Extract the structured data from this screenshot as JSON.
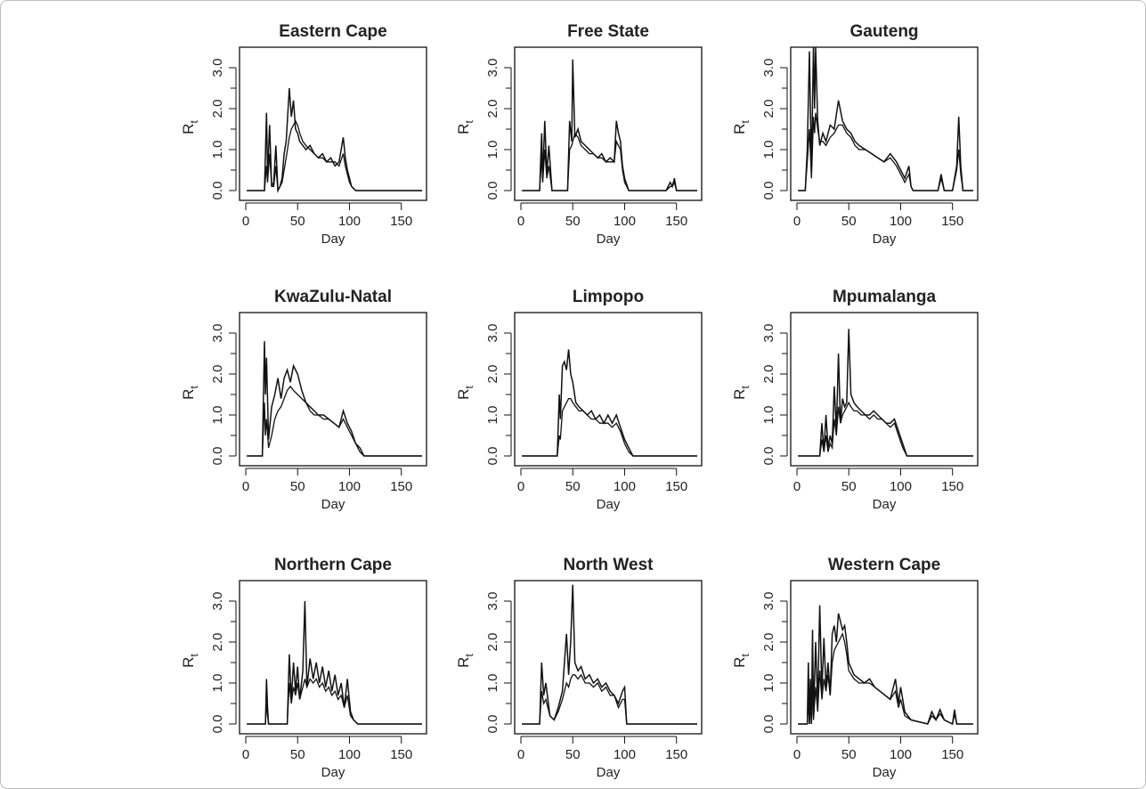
{
  "chart_data": [
    {
      "type": "line",
      "title": "Eastern Cape",
      "xlabel": "Day",
      "ylabel": "R",
      "ylabel_subscript": "t",
      "xlim": [
        0,
        170
      ],
      "ylim": [
        0,
        3.0
      ],
      "xticks": [
        0,
        50,
        100,
        150
      ],
      "yticks": [
        0.0,
        1.0,
        2.0,
        3.0
      ],
      "x": [
        1,
        18,
        20,
        21,
        23,
        25,
        27,
        29,
        31,
        33,
        35,
        37,
        39,
        42,
        44,
        46,
        48,
        50,
        52,
        55,
        58,
        62,
        66,
        70,
        74,
        78,
        82,
        86,
        90,
        94,
        96,
        98,
        100,
        102,
        104,
        106,
        110,
        170
      ],
      "series": [
        {
          "values": [
            0,
            0,
            1.9,
            0.4,
            1.6,
            0.1,
            0.2,
            1.1,
            0,
            0.1,
            0.3,
            0.9,
            1.2,
            2.5,
            1.8,
            2.2,
            1.5,
            1.4,
            1.2,
            1.1,
            1.0,
            1.1,
            0.9,
            0.8,
            0.9,
            0.7,
            0.8,
            0.6,
            0.7,
            1.3,
            0.8,
            0.5,
            0.3,
            0.1,
            0.05,
            0,
            0,
            0
          ]
        },
        {
          "values": [
            0,
            0,
            0.6,
            0.2,
            0.9,
            0.1,
            0.1,
            0.6,
            0,
            0.1,
            0.2,
            0.5,
            0.8,
            1.3,
            1.5,
            1.6,
            1.7,
            1.6,
            1.4,
            1.2,
            1.1,
            1.0,
            0.9,
            0.8,
            0.8,
            0.7,
            0.7,
            0.7,
            0.6,
            0.9,
            0.6,
            0.4,
            0.2,
            0.1,
            0.05,
            0,
            0,
            0
          ]
        }
      ]
    },
    {
      "type": "line",
      "title": "Free State",
      "xlabel": "Day",
      "ylabel": "R",
      "ylabel_subscript": "t",
      "xlim": [
        0,
        170
      ],
      "ylim": [
        0,
        3.0
      ],
      "xticks": [
        0,
        50,
        100,
        150
      ],
      "yticks": [
        0.0,
        1.0,
        2.0,
        3.0
      ],
      "x": [
        1,
        18,
        20,
        21,
        23,
        25,
        27,
        30,
        45,
        47,
        49,
        50,
        52,
        55,
        58,
        62,
        66,
        70,
        74,
        78,
        82,
        86,
        90,
        92,
        94,
        96,
        98,
        100,
        104,
        140,
        144,
        146,
        148,
        150,
        170
      ],
      "series": [
        {
          "values": [
            0,
            0,
            1.4,
            0.3,
            1.7,
            0.4,
            1.1,
            0,
            0,
            1.7,
            1.2,
            3.2,
            1.3,
            1.5,
            1.2,
            1.1,
            1.0,
            0.9,
            0.8,
            0.9,
            0.7,
            0.8,
            0.7,
            1.7,
            1.4,
            1.2,
            0.6,
            0.3,
            0,
            0,
            0.2,
            0.1,
            0.3,
            0,
            0
          ]
        },
        {
          "values": [
            0,
            0,
            0.8,
            0.2,
            1.0,
            0.3,
            0.6,
            0,
            0,
            1.0,
            1.1,
            1.2,
            1.4,
            1.3,
            1.1,
            1.0,
            0.9,
            0.9,
            0.8,
            0.8,
            0.7,
            0.7,
            0.7,
            1.2,
            1.1,
            1.0,
            0.5,
            0.2,
            0,
            0,
            0.1,
            0.1,
            0.2,
            0,
            0
          ]
        }
      ]
    },
    {
      "type": "line",
      "title": "Gauteng",
      "xlabel": "Day",
      "ylabel": "R",
      "ylabel_subscript": "t",
      "xlim": [
        0,
        170
      ],
      "ylim": [
        0,
        3.0
      ],
      "xticks": [
        0,
        50,
        100,
        150
      ],
      "yticks": [
        0.0,
        1.0,
        2.0,
        3.0
      ],
      "x": [
        1,
        8,
        10,
        12,
        14,
        16,
        17,
        18,
        20,
        22,
        25,
        28,
        32,
        36,
        40,
        44,
        48,
        52,
        56,
        60,
        66,
        72,
        78,
        84,
        90,
        96,
        100,
        104,
        108,
        110,
        112,
        136,
        139,
        142,
        150,
        154,
        156,
        158,
        160,
        170
      ],
      "series": [
        {
          "values": [
            0,
            0,
            1.0,
            3.4,
            0.5,
            3.6,
            2.0,
            3.5,
            1.7,
            1.1,
            1.4,
            1.2,
            1.6,
            1.5,
            2.2,
            1.7,
            1.5,
            1.4,
            1.2,
            1.1,
            1.0,
            0.9,
            0.8,
            0.7,
            0.9,
            0.7,
            0.5,
            0.3,
            0.6,
            0.1,
            0,
            0,
            0.4,
            0,
            0,
            0.6,
            1.8,
            0.6,
            0,
            0
          ]
        },
        {
          "values": [
            0,
            0,
            0.7,
            1.5,
            0.3,
            1.8,
            1.4,
            1.9,
            1.5,
            1.2,
            1.2,
            1.1,
            1.3,
            1.4,
            1.6,
            1.6,
            1.4,
            1.3,
            1.1,
            1.0,
            1.0,
            0.9,
            0.8,
            0.7,
            0.8,
            0.6,
            0.4,
            0.2,
            0.4,
            0.1,
            0,
            0,
            0.3,
            0,
            0,
            0.5,
            1.0,
            0.4,
            0,
            0
          ]
        }
      ]
    },
    {
      "type": "line",
      "title": "KwaZulu-Natal",
      "xlabel": "Day",
      "ylabel": "R",
      "ylabel_subscript": "t",
      "xlim": [
        0,
        170
      ],
      "ylim": [
        0,
        3.0
      ],
      "xticks": [
        0,
        50,
        100,
        150
      ],
      "yticks": [
        0.0,
        1.0,
        2.0,
        3.0
      ],
      "x": [
        1,
        16,
        18,
        19,
        20,
        22,
        25,
        28,
        31,
        34,
        37,
        40,
        43,
        46,
        50,
        54,
        58,
        62,
        66,
        70,
        75,
        80,
        85,
        90,
        94,
        98,
        102,
        106,
        110,
        114,
        170
      ],
      "series": [
        {
          "values": [
            0,
            0,
            2.8,
            1.5,
            2.4,
            0.4,
            1.2,
            1.5,
            1.9,
            1.4,
            1.9,
            2.1,
            1.8,
            2.2,
            2.0,
            1.6,
            1.3,
            1.2,
            1.1,
            1.0,
            1.0,
            0.9,
            0.8,
            0.7,
            1.1,
            0.8,
            0.6,
            0.3,
            0.2,
            0,
            0
          ]
        },
        {
          "values": [
            0,
            0,
            1.3,
            0.5,
            0.9,
            0.2,
            0.5,
            0.9,
            1.1,
            1.2,
            1.4,
            1.6,
            1.7,
            1.6,
            1.5,
            1.4,
            1.3,
            1.1,
            1.0,
            1.0,
            0.9,
            0.9,
            0.8,
            0.7,
            0.9,
            0.7,
            0.5,
            0.3,
            0.1,
            0,
            0
          ]
        }
      ]
    },
    {
      "type": "line",
      "title": "Limpopo",
      "xlabel": "Day",
      "ylabel": "R",
      "ylabel_subscript": "t",
      "xlim": [
        0,
        170
      ],
      "ylim": [
        0,
        3.0
      ],
      "xticks": [
        0,
        50,
        100,
        150
      ],
      "yticks": [
        0.0,
        1.0,
        2.0,
        3.0
      ],
      "x": [
        1,
        35,
        37,
        38,
        40,
        42,
        44,
        46,
        48,
        50,
        53,
        56,
        60,
        64,
        68,
        72,
        76,
        80,
        84,
        88,
        92,
        96,
        100,
        104,
        108,
        170
      ],
      "series": [
        {
          "values": [
            0,
            0,
            1.5,
            0.9,
            2.2,
            2.3,
            2.1,
            2.6,
            2.0,
            1.8,
            1.3,
            1.2,
            1.1,
            1.0,
            1.1,
            0.9,
            1.0,
            0.8,
            1.0,
            0.8,
            1.0,
            0.7,
            0.4,
            0.2,
            0,
            0
          ]
        },
        {
          "values": [
            0,
            0,
            0.5,
            0.4,
            1.1,
            1.2,
            1.3,
            1.4,
            1.4,
            1.3,
            1.2,
            1.1,
            1.1,
            1.0,
            0.9,
            0.9,
            0.8,
            0.8,
            0.8,
            0.7,
            0.8,
            0.6,
            0.3,
            0.1,
            0,
            0
          ]
        }
      ]
    },
    {
      "type": "line",
      "title": "Mpumalanga",
      "xlabel": "Day",
      "ylabel": "R",
      "ylabel_subscript": "t",
      "xlim": [
        0,
        170
      ],
      "ylim": [
        0,
        3.0
      ],
      "xticks": [
        0,
        50,
        100,
        150
      ],
      "yticks": [
        0.0,
        1.0,
        2.0,
        3.0
      ],
      "x": [
        1,
        22,
        24,
        26,
        28,
        30,
        32,
        34,
        36,
        38,
        40,
        42,
        44,
        46,
        48,
        50,
        52,
        55,
        58,
        62,
        66,
        70,
        74,
        78,
        82,
        86,
        90,
        94,
        98,
        102,
        106,
        170
      ],
      "series": [
        {
          "values": [
            0,
            0,
            0.8,
            0.1,
            1.0,
            0.2,
            0.5,
            0.3,
            1.7,
            0.6,
            2.5,
            0.8,
            1.4,
            1.2,
            1.3,
            3.1,
            1.5,
            1.3,
            1.2,
            1.1,
            1.0,
            1.0,
            1.1,
            1.0,
            0.9,
            0.8,
            0.8,
            0.9,
            0.6,
            0.3,
            0,
            0
          ]
        },
        {
          "values": [
            0,
            0,
            0.4,
            0.1,
            0.5,
            0.1,
            0.3,
            0.2,
            0.9,
            0.5,
            1.2,
            0.8,
            1.0,
            1.1,
            1.2,
            1.3,
            1.2,
            1.1,
            1.1,
            1.0,
            1.0,
            0.9,
            1.0,
            0.9,
            0.9,
            0.8,
            0.7,
            0.8,
            0.5,
            0.2,
            0,
            0
          ]
        }
      ]
    },
    {
      "type": "line",
      "title": "Northern Cape",
      "xlabel": "Day",
      "ylabel": "R",
      "ylabel_subscript": "t",
      "xlim": [
        0,
        170
      ],
      "ylim": [
        0,
        3.0
      ],
      "xticks": [
        0,
        50,
        100,
        150
      ],
      "yticks": [
        0.0,
        1.0,
        2.0,
        3.0
      ],
      "x": [
        1,
        19,
        20,
        21,
        22,
        40,
        42,
        44,
        46,
        48,
        50,
        52,
        55,
        57,
        59,
        62,
        65,
        68,
        71,
        74,
        77,
        80,
        83,
        86,
        89,
        92,
        95,
        98,
        101,
        104,
        108,
        170
      ],
      "series": [
        {
          "values": [
            0,
            0,
            1.1,
            0.4,
            0,
            0,
            1.7,
            0.6,
            1.5,
            0.8,
            1.4,
            0.6,
            1.3,
            3.0,
            0.9,
            1.6,
            1.1,
            1.5,
            1.0,
            1.4,
            0.9,
            1.3,
            0.8,
            1.2,
            0.7,
            1.0,
            0.4,
            1.1,
            0.3,
            0.1,
            0,
            0
          ]
        },
        {
          "values": [
            0,
            0,
            0.5,
            0.2,
            0,
            0,
            1.0,
            0.5,
            0.9,
            0.7,
            1.0,
            0.6,
            0.9,
            1.1,
            0.9,
            1.1,
            1.0,
            1.1,
            0.9,
            1.0,
            0.8,
            0.9,
            0.7,
            0.8,
            0.6,
            0.7,
            0.4,
            0.7,
            0.2,
            0.1,
            0,
            0
          ]
        }
      ]
    },
    {
      "type": "line",
      "title": "North West",
      "xlabel": "Day",
      "ylabel": "R",
      "ylabel_subscript": "t",
      "xlim": [
        0,
        170
      ],
      "ylim": [
        0,
        3.0
      ],
      "xticks": [
        0,
        50,
        100,
        150
      ],
      "yticks": [
        0.0,
        1.0,
        2.0,
        3.0
      ],
      "x": [
        1,
        18,
        20,
        22,
        24,
        26,
        28,
        32,
        36,
        40,
        44,
        46,
        48,
        50,
        52,
        55,
        58,
        62,
        66,
        70,
        74,
        78,
        82,
        86,
        90,
        94,
        98,
        100,
        102,
        170
      ],
      "series": [
        {
          "values": [
            0,
            0,
            1.5,
            0.7,
            1.0,
            0.6,
            0.2,
            0.1,
            0.4,
            0.8,
            2.2,
            1.2,
            2.0,
            3.4,
            1.5,
            1.3,
            1.4,
            1.1,
            1.2,
            1.0,
            1.1,
            0.9,
            1.0,
            0.8,
            0.7,
            0.5,
            0.8,
            0.9,
            0,
            0
          ]
        },
        {
          "values": [
            0,
            0,
            0.8,
            0.5,
            0.6,
            0.4,
            0.2,
            0.1,
            0.3,
            0.6,
            1.0,
            0.9,
            1.1,
            1.2,
            1.2,
            1.1,
            1.2,
            1.0,
            1.0,
            0.9,
            1.0,
            0.8,
            0.9,
            0.7,
            0.7,
            0.4,
            0.6,
            0.6,
            0,
            0
          ]
        }
      ]
    },
    {
      "type": "line",
      "title": "Western Cape",
      "xlabel": "Day",
      "ylabel": "R",
      "ylabel_subscript": "t",
      "xlim": [
        0,
        170
      ],
      "ylim": [
        0,
        3.0
      ],
      "xticks": [
        0,
        50,
        100,
        150
      ],
      "yticks": [
        0.0,
        1.0,
        2.0,
        3.0
      ],
      "x": [
        1,
        10,
        11,
        12,
        13,
        14,
        15,
        16,
        18,
        20,
        22,
        24,
        26,
        28,
        30,
        32,
        34,
        36,
        38,
        40,
        42,
        44,
        46,
        48,
        50,
        55,
        60,
        65,
        70,
        75,
        80,
        85,
        90,
        95,
        98,
        100,
        104,
        110,
        126,
        130,
        134,
        138,
        142,
        150,
        152,
        154,
        160,
        170
      ],
      "series": [
        {
          "values": [
            0,
            0,
            1.5,
            0,
            1.1,
            0,
            2.3,
            0.2,
            2.0,
            0.5,
            2.9,
            0.8,
            2.1,
            0.9,
            1.5,
            0.7,
            2.2,
            2.4,
            2.0,
            2.7,
            2.5,
            2.3,
            2.4,
            2.0,
            1.5,
            1.2,
            1.1,
            1.0,
            1.1,
            0.9,
            0.8,
            0.7,
            0.6,
            1.1,
            0.5,
            0.9,
            0.3,
            0.1,
            0,
            0.3,
            0.1,
            0.35,
            0.1,
            0,
            0.35,
            0,
            0,
            0
          ]
        },
        {
          "values": [
            0,
            0,
            0.6,
            0,
            0.5,
            0,
            1.0,
            0.1,
            0.9,
            0.3,
            1.3,
            0.6,
            1.1,
            0.8,
            1.2,
            0.7,
            1.5,
            1.8,
            1.9,
            2.0,
            2.1,
            2.2,
            2.0,
            1.7,
            1.3,
            1.1,
            1.0,
            1.0,
            1.0,
            0.9,
            0.8,
            0.7,
            0.6,
            0.8,
            0.4,
            0.6,
            0.2,
            0.1,
            0,
            0.2,
            0.1,
            0.25,
            0.1,
            0,
            0.25,
            0,
            0,
            0
          ]
        }
      ]
    }
  ]
}
